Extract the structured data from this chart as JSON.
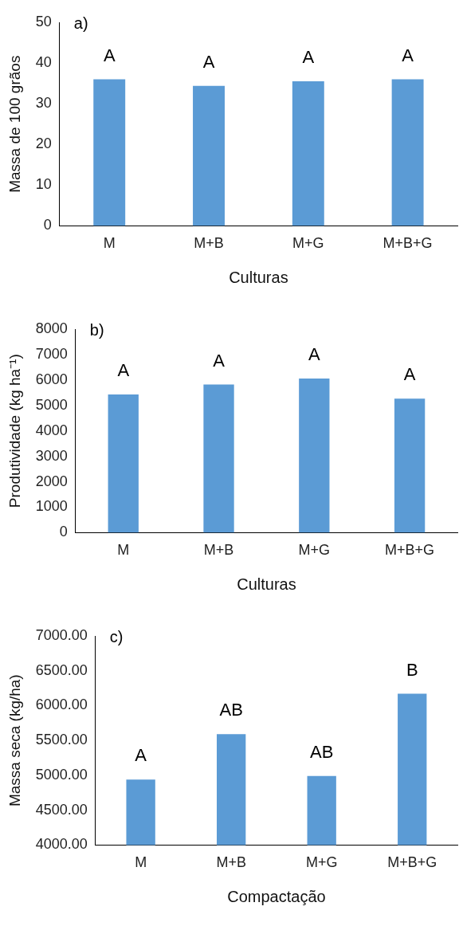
{
  "chart_data": [
    {
      "type": "bar",
      "title": "a)",
      "xlabel": "Culturas",
      "ylabel": "Massa de 100 grãos",
      "categories": [
        "M",
        "M+B",
        "M+G",
        "M+B+G"
      ],
      "values": [
        36.0,
        34.4,
        35.5,
        36.0
      ],
      "color": "#5b9bd5",
      "ylim": [
        0,
        50
      ],
      "yticks": [
        0,
        10,
        20,
        30,
        40,
        50
      ],
      "annotations": [
        {
          "text": "A",
          "x": "M",
          "y": 36.0
        },
        {
          "text": "A",
          "x": "M+B",
          "y": 34.4
        },
        {
          "text": "A",
          "x": "M+G",
          "y": 35.5
        },
        {
          "text": "A",
          "x": "M+B+G",
          "y": 36.0
        }
      ]
    },
    {
      "type": "bar",
      "title": "b)",
      "xlabel": "Culturas",
      "ylabel": "Produtividade (kg ha⁻¹)",
      "categories": [
        "M",
        "M+B",
        "M+G",
        "M+B+G"
      ],
      "values": [
        5430,
        5820,
        6060,
        5270
      ],
      "color": "#5b9bd5",
      "ylim": [
        0,
        8000
      ],
      "yticks": [
        0,
        1000,
        2000,
        3000,
        4000,
        5000,
        6000,
        7000,
        8000
      ],
      "annotations": [
        {
          "text": "A",
          "x": "M",
          "y": 5430
        },
        {
          "text": "A",
          "x": "M+B",
          "y": 5820
        },
        {
          "text": "A",
          "x": "M+G",
          "y": 6060
        },
        {
          "text": "A",
          "x": "M+B+G",
          "y": 5270
        }
      ]
    },
    {
      "type": "bar",
      "title": "c)",
      "xlabel": "Compactação",
      "ylabel": "Massa seca (kg/ha)",
      "categories": [
        "M",
        "M+B",
        "M+G",
        "M+B+G"
      ],
      "values": [
        4940,
        5590,
        4990,
        6170
      ],
      "color": "#5b9bd5",
      "ylim": [
        4000,
        7000
      ],
      "yticks": [
        {
          "value": 4000,
          "label": "4000.00"
        },
        {
          "value": 4500,
          "label": "4500.00"
        },
        {
          "value": 5000,
          "label": "5000.00"
        },
        {
          "value": 5500,
          "label": "5500.00"
        },
        {
          "value": 6000,
          "label": "6000.00"
        },
        {
          "value": 6500,
          "label": "6500.00"
        },
        {
          "value": 7000,
          "label": "7000.00"
        }
      ],
      "annotations": [
        {
          "text": "A",
          "x": "M",
          "y": 4940
        },
        {
          "text": "AB",
          "x": "M+B",
          "y": 5590
        },
        {
          "text": "AB",
          "x": "M+G",
          "y": 4990
        },
        {
          "text": "B",
          "x": "M+B+G",
          "y": 6170
        }
      ]
    }
  ]
}
